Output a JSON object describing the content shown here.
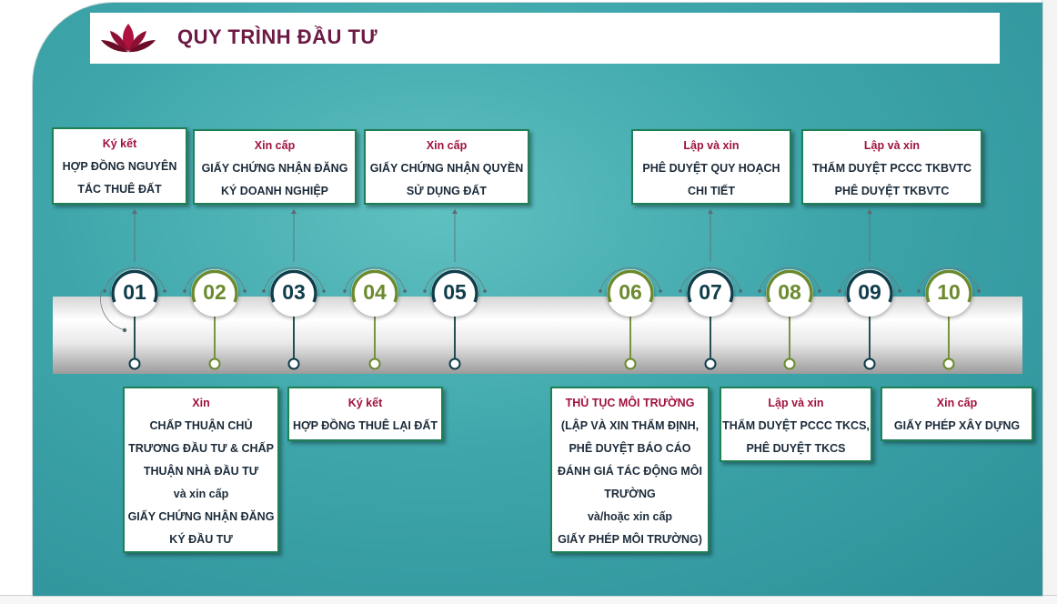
{
  "title": "QUY TRÌNH ĐẦU TƯ",
  "colors": {
    "dark": "#0f3d4a",
    "olive": "#6b8a2e",
    "accent": "#a0123c",
    "border": "#1f7f55"
  },
  "steps": [
    {
      "num": "01",
      "color": "dark"
    },
    {
      "num": "02",
      "color": "olive"
    },
    {
      "num": "03",
      "color": "dark"
    },
    {
      "num": "04",
      "color": "olive"
    },
    {
      "num": "05",
      "color": "dark"
    },
    {
      "num": "06",
      "color": "olive"
    },
    {
      "num": "07",
      "color": "dark"
    },
    {
      "num": "08",
      "color": "olive"
    },
    {
      "num": "09",
      "color": "dark"
    },
    {
      "num": "10",
      "color": "olive"
    }
  ],
  "boxes": [
    {
      "head": "Ký kết",
      "lines": [
        "HỢP ĐỒNG NGUYÊN",
        "TẮC THUÊ ĐẤT"
      ]
    },
    {
      "head": "Xin cấp",
      "lines": [
        "GIẤY CHỨNG NHẬN ĐĂNG",
        "KÝ DOANH NGHIỆP"
      ]
    },
    {
      "head": "Xin cấp",
      "lines": [
        "GIẤY CHỨNG NHẬN QUYỀN",
        "SỬ DỤNG ĐẤT"
      ]
    },
    {
      "head": "Lập và xin",
      "lines": [
        "PHÊ DUYỆT QUY HOẠCH",
        "CHI TIẾT"
      ]
    },
    {
      "head": "Lập và xin",
      "lines": [
        "THẨM DUYỆT PCCC TKBVTC",
        "PHÊ DUYỆT TKBVTC"
      ]
    },
    {
      "head": "Xin",
      "lines": [
        "CHẤP THUẬN CHỦ",
        "TRƯƠNG ĐẦU TƯ & CHẤP",
        "THUẬN NHÀ ĐẦU TƯ",
        "và xin cấp",
        "GIẤY CHỨNG NHẬN ĐĂNG",
        "KÝ ĐẦU TƯ"
      ]
    },
    {
      "head": "Ký kết",
      "lines": [
        "HỢP ĐỒNG THUÊ LẠI ĐẤT"
      ]
    },
    {
      "head": "THỦ TỤC MÔI TRƯỜNG",
      "lines": [
        "(LẬP VÀ XIN THẨM ĐỊNH,",
        "PHÊ DUYỆT BÁO CÁO",
        "ĐÁNH GIÁ TÁC ĐỘNG MÔI",
        "TRƯỜNG",
        "và/hoặc xin cấp",
        "GIẤY PHÉP MÔI TRƯỜNG)"
      ]
    },
    {
      "head": "Lập và xin",
      "lines": [
        "THẨM DUYỆT PCCC TKCS,",
        "PHÊ DUYỆT TKCS"
      ]
    },
    {
      "head": "Xin cấp",
      "lines": [
        "GIẤY PHÉP XÂY DỰNG"
      ]
    }
  ]
}
